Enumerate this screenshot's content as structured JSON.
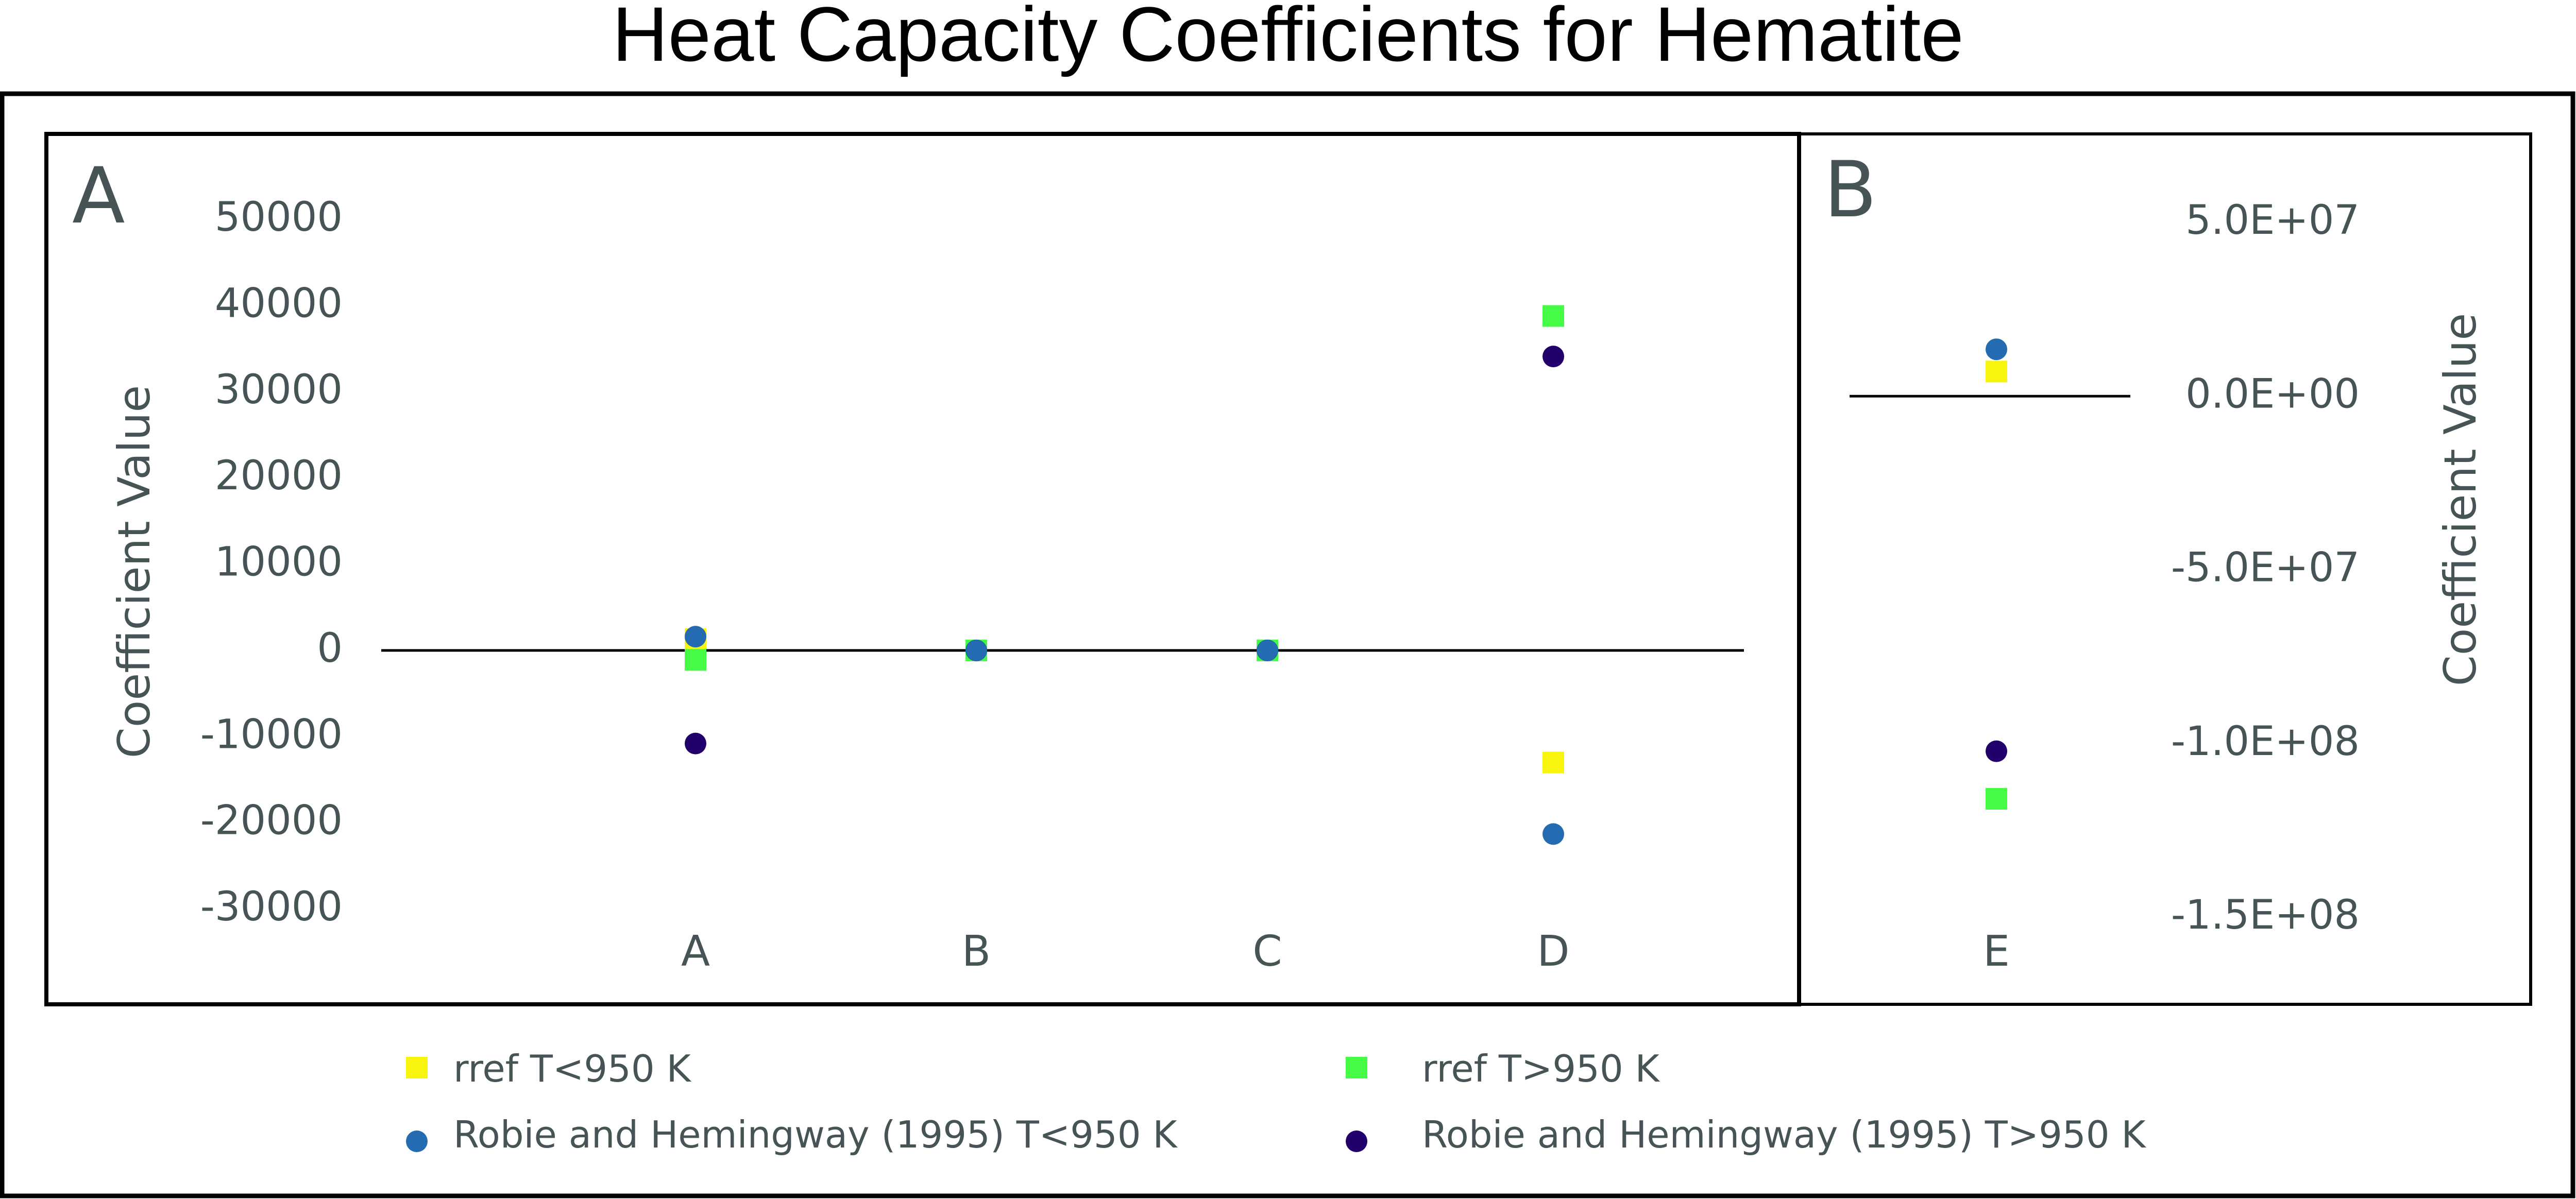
{
  "chart_data": [
    {
      "panel": "A",
      "type": "scatter",
      "title": "Heat Capacity Coefficients for Hematite",
      "xlabel": "",
      "ylabel": "Coefficient Value",
      "categories": [
        "A",
        "B",
        "C",
        "D"
      ],
      "ylim": [
        -30000,
        50000
      ],
      "yticks": [
        50000,
        40000,
        30000,
        20000,
        10000,
        0,
        -10000,
        -20000,
        -30000
      ],
      "ytick_labels": [
        "50000",
        "40000",
        "30000",
        "20000",
        "10000",
        "0",
        "-10000",
        "-20000",
        "-30000"
      ],
      "zero_line": true,
      "grid": false,
      "series": [
        {
          "name": "rref T<950 K",
          "marker": "square",
          "color": "#f7f40d",
          "values": [
            1300,
            0,
            0,
            -13000
          ]
        },
        {
          "name": "rref T>950 K",
          "marker": "square",
          "color": "#45fb45",
          "values": [
            -1100,
            0,
            0,
            38800
          ]
        },
        {
          "name": "Robie and Hemingway (1995) T<950 K",
          "marker": "circle",
          "color": "#246bb2",
          "values": [
            1600,
            0,
            0,
            -21300
          ]
        },
        {
          "name": "Robie and Hemingway (1995) T>950 K",
          "marker": "circle",
          "color": "#22006b",
          "values": [
            -10800,
            0,
            0,
            34100
          ]
        }
      ]
    },
    {
      "panel": "B",
      "type": "scatter",
      "xlabel": "",
      "ylabel": "Coefficient Value",
      "categories": [
        "E"
      ],
      "ylim": [
        -150000000,
        50000000
      ],
      "yticks": [
        50000000,
        0,
        -50000000,
        -100000000,
        -150000000
      ],
      "ytick_labels": [
        "5.0E+07",
        "0.0E+00",
        "-5.0E+07",
        "-1.0E+08",
        "-1.5E+08"
      ],
      "zero_line": true,
      "grid": false,
      "series": [
        {
          "name": "rref T<950 K",
          "marker": "square",
          "color": "#f7f40d",
          "values": [
            7100000
          ]
        },
        {
          "name": "rref T>950 K",
          "marker": "square",
          "color": "#45fb45",
          "values": [
            -115900000
          ]
        },
        {
          "name": "Robie and Hemingway (1995) T<950 K",
          "marker": "circle",
          "color": "#246bb2",
          "values": [
            13500000
          ]
        },
        {
          "name": "Robie and Hemingway (1995) T>950 K",
          "marker": "circle",
          "color": "#22006b",
          "values": [
            -102200000
          ]
        }
      ]
    }
  ],
  "figure": {
    "title": "Heat Capacity Coefficients for Hematite",
    "panel_a_label": "A",
    "panel_b_label": "B",
    "axis_title": "Coefficient Value",
    "legend_position": "bottom",
    "legend": [
      {
        "label": "rref T<950 K",
        "marker": "square",
        "color": "#f7f40d"
      },
      {
        "label": "rref T>950 K",
        "marker": "square",
        "color": "#45fb45"
      },
      {
        "label": "Robie and Hemingway (1995) T<950 K",
        "marker": "circle",
        "color": "#246bb2"
      },
      {
        "label": "Robie and Hemingway (1995) T>950 K",
        "marker": "circle",
        "color": "#22006b"
      }
    ]
  }
}
